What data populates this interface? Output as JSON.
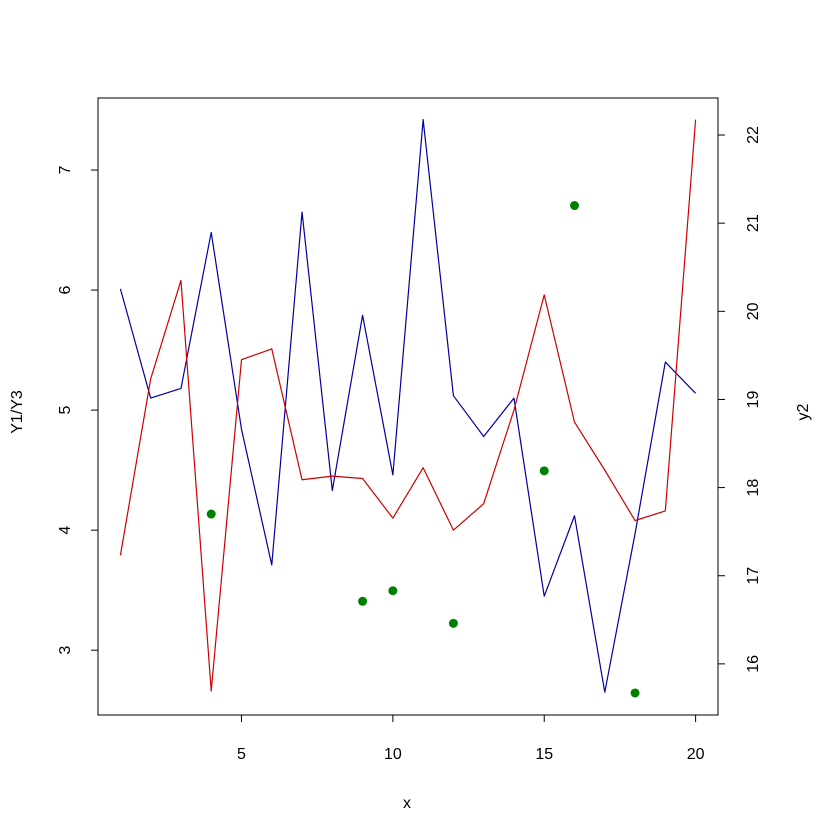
{
  "chart_data": {
    "type": "line",
    "xlabel": "x",
    "ylabel_left": "Y1/Y3",
    "ylabel_right": "y2",
    "xlim": [
      0.26,
      20.74
    ],
    "ylim_left": [
      2.46,
      7.6
    ],
    "ylim_right": [
      15.42,
      22.42
    ],
    "x_ticks": [
      5,
      10,
      15,
      20
    ],
    "y_left_ticks": [
      3,
      4,
      5,
      6,
      7
    ],
    "y_right_ticks": [
      16,
      17,
      18,
      19,
      20,
      21,
      22
    ],
    "x": [
      1,
      2,
      3,
      4,
      5,
      6,
      7,
      8,
      9,
      10,
      11,
      12,
      13,
      14,
      15,
      16,
      17,
      18,
      19,
      20
    ],
    "series": [
      {
        "color": "#0000a0",
        "axis": "left",
        "style": "line",
        "values": [
          6.01,
          5.1,
          5.18,
          6.48,
          4.84,
          3.71,
          6.65,
          4.33,
          5.79,
          4.46,
          7.42,
          5.12,
          4.78,
          5.1,
          3.45,
          4.12,
          2.65,
          3.97,
          5.4,
          5.14
        ]
      },
      {
        "color": "#cc0000",
        "axis": "left",
        "style": "line",
        "values": [
          3.79,
          5.26,
          6.08,
          2.66,
          5.42,
          5.51,
          4.42,
          4.45,
          4.43,
          4.1,
          4.52,
          4.0,
          4.22,
          5.0,
          5.96,
          4.9,
          4.5,
          4.08,
          4.16,
          7.42
        ]
      },
      {
        "color": "#008000",
        "axis": "right",
        "style": "points",
        "x": [
          4,
          9,
          10,
          12,
          15,
          16,
          18
        ],
        "values": [
          17.7,
          16.71,
          16.83,
          16.46,
          18.19,
          21.2,
          15.67
        ]
      }
    ]
  }
}
